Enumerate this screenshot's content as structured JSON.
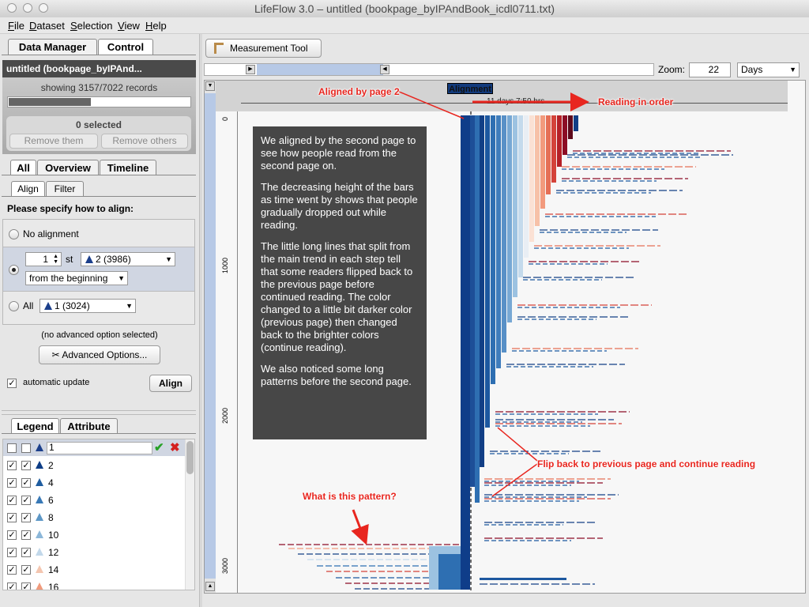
{
  "window": {
    "title": "LifeFlow 3.0 – untitled (bookpage_byIPAndBook_icdl0711.txt)"
  },
  "menu": [
    "File",
    "Dataset",
    "Selection",
    "View",
    "Help"
  ],
  "left": {
    "main_tabs": [
      "Data Manager",
      "Control"
    ],
    "dataset_name": "untitled (bookpage_byIPAnd...",
    "showing": "showing 3157/7022 records",
    "progress_fraction": 0.45,
    "selected": "0 selected",
    "remove_them": "Remove them",
    "remove_others": "Remove others",
    "view_tabs": [
      "All",
      "Overview",
      "Timeline"
    ],
    "sub_tabs": [
      "Align",
      "Filter"
    ],
    "align_prompt": "Please specify how to align:",
    "no_alignment": "No alignment",
    "nth_value": "1",
    "nth_suffix": "st",
    "event_select": "2 (3986)",
    "from_select": "from the beginning",
    "all_label": "All",
    "all_select": "1 (3024)",
    "advanced_note": "(no advanced option selected)",
    "advanced_button": "Advanced Options...",
    "auto_update": "automatic update",
    "align_button": "Align",
    "legend_tabs": [
      "Legend",
      "Attribute"
    ],
    "legend_input": "1",
    "legend_items": [
      {
        "label": "2",
        "color": "#0d3d86"
      },
      {
        "label": "4",
        "color": "#1f5da0"
      },
      {
        "label": "6",
        "color": "#3979b6"
      },
      {
        "label": "8",
        "color": "#5d97c6"
      },
      {
        "label": "10",
        "color": "#8cb7d9"
      },
      {
        "label": "12",
        "color": "#c2d8ea"
      },
      {
        "label": "14",
        "color": "#f4c6b0"
      },
      {
        "label": "16",
        "color": "#f09a7c"
      }
    ]
  },
  "right": {
    "measurement_tool": "Measurement Tool",
    "zoom_label": "Zoom:",
    "zoom_value": "22",
    "unit": "Days",
    "alignment_label": "Alignment",
    "time_label": "11 days 7:50 hrs",
    "axis_ticks": [
      "0",
      "1000",
      "2000",
      "3000"
    ]
  },
  "annotations": {
    "aligned": "Aligned by page 2",
    "reading_order": "Reading in order",
    "flip_back": "Flip back to previous page and continue reading",
    "what_pattern": "What is this pattern?",
    "info_paragraphs": [
      "We aligned by the second page to see how people read from the second page on.",
      "The decreasing height of the bars as time went by shows that people gradually dropped out while reading.",
      "The little long lines that split from the main trend in each step tell that some readers flipped back to the previous page before continued reading. The color changed to a little bit darker color (previous page) then changed back to the brighter colors (continue reading).",
      "We also noticed some long patterns before the second page."
    ]
  },
  "colors": {
    "blues": [
      "#0b2d6b",
      "#123f86",
      "#1d58a0",
      "#2e6fb2",
      "#4a89c2",
      "#6fa5d1",
      "#99c1e0",
      "#c4daec"
    ],
    "reds": [
      "#fbe1d4",
      "#f7c1a8",
      "#f29a7d",
      "#e56f56",
      "#d4433a",
      "#b52027",
      "#8c0d25",
      "#5e0a1c"
    ],
    "annotation": "#e8261f"
  }
}
